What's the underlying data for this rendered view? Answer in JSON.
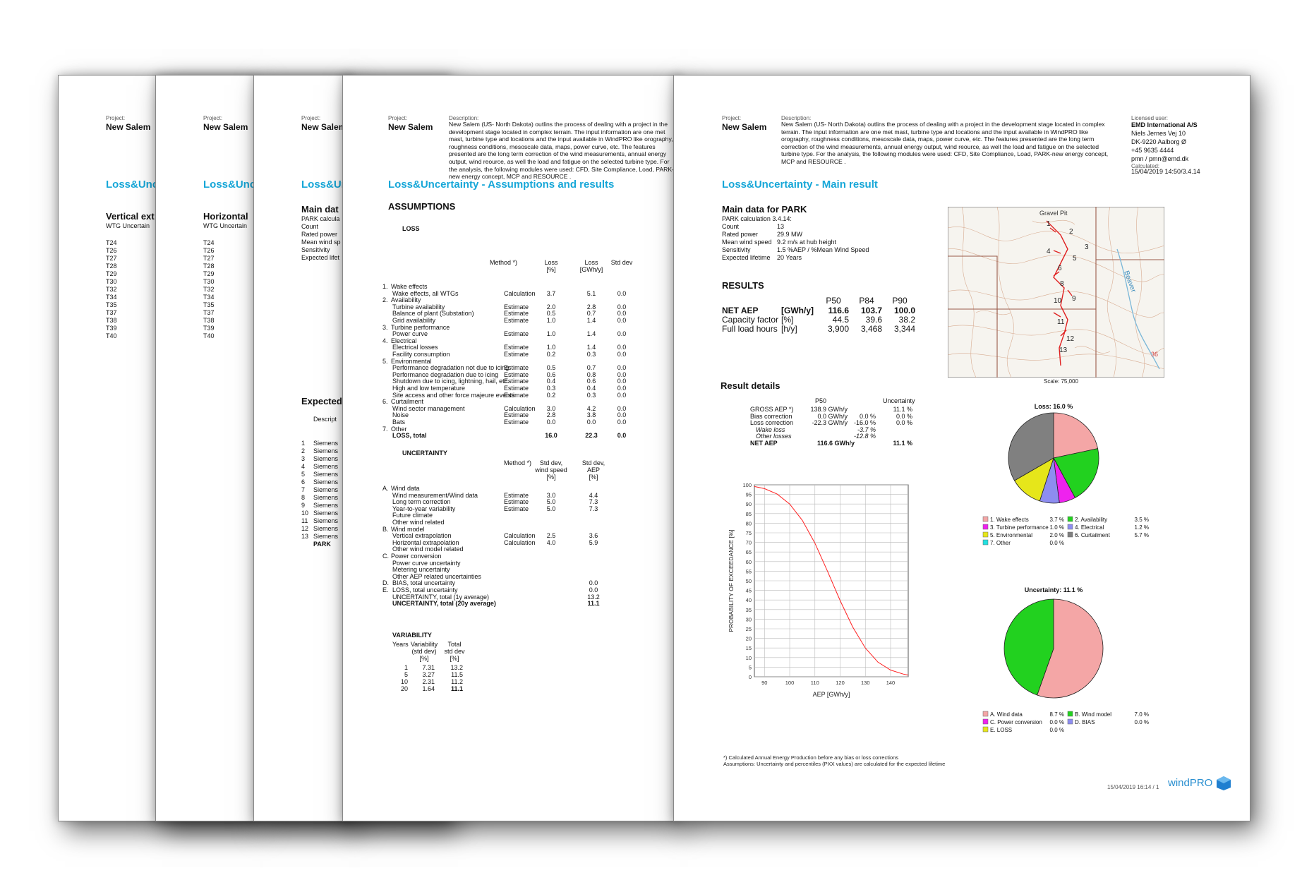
{
  "project": {
    "label": "Project:",
    "name": "New Salem",
    "description_label": "Description:",
    "description": "New Salem (US- North Dakota) outlins the process of dealing with a project in the development stage located in complex terrain. The input information are one met mast, turbine type and locations and the input available in WindPRO like orography, roughness conditions, mesoscale data, maps, power curve, etc. The features presented are the long term correction of the wind measurements, annual energy output, wind reource, as well the load and fatigue on the selected turbine type. For the analysis, the following modules were used: CFD, Site Compliance, Load, PARK-new energy concept, MCP and RESOURCE ."
  },
  "licensed": {
    "label": "Licensed user:",
    "company": "EMD International A/S",
    "street": "Niels Jernes Vej 10",
    "city": "DK-9220 Aalborg Ø",
    "phone": "+45 9635 4444",
    "email": "pmn / pmn@emd.dk",
    "calc_label": "Calculated:",
    "calculated": "15/04/2019 14:50/3.4.14"
  },
  "page1": {
    "title": "Loss&Unc",
    "heading": "Vertical ext",
    "sub": "WTG   Uncertain",
    "rows": [
      "T24",
      "T26",
      "T27",
      "T28",
      "T29",
      "T30",
      "T32",
      "T34",
      "T35",
      "T37",
      "T38",
      "T39",
      "T40"
    ]
  },
  "page2": {
    "title": "Loss&Unc",
    "heading": "Horizontal",
    "sub": "WTG   Uncertain",
    "rows": [
      "T24",
      "T26",
      "T27",
      "T28",
      "T29",
      "T30",
      "T32",
      "T34",
      "T35",
      "T37",
      "T38",
      "T39",
      "T40"
    ]
  },
  "page3": {
    "title": "Loss&Unc",
    "heading": "Main dat",
    "params": [
      "PARK calcula",
      "Count",
      "Rated power",
      "Mean wind sp",
      "Sensitivity",
      "Expected lifet"
    ],
    "expected": "Expected",
    "descr": "Descript",
    "list": [
      {
        "n": "1",
        "t": "Siemens"
      },
      {
        "n": "2",
        "t": "Siemens"
      },
      {
        "n": "3",
        "t": "Siemens"
      },
      {
        "n": "4",
        "t": "Siemens"
      },
      {
        "n": "5",
        "t": "Siemens"
      },
      {
        "n": "6",
        "t": "Siemens"
      },
      {
        "n": "7",
        "t": "Siemens"
      },
      {
        "n": "8",
        "t": "Siemens"
      },
      {
        "n": "9",
        "t": "Siemens"
      },
      {
        "n": "10",
        "t": "Siemens"
      },
      {
        "n": "11",
        "t": "Siemens"
      },
      {
        "n": "12",
        "t": "Siemens"
      },
      {
        "n": "13",
        "t": "Siemens"
      }
    ],
    "park": "PARK"
  },
  "page4": {
    "title": "Loss&Uncertainty - Assumptions and results",
    "assumptions": "ASSUMPTIONS",
    "loss": "LOSS",
    "loss_headers": {
      "method": "Method *)",
      "loss_pct": "Loss\n[%]",
      "loss_gwh": "Loss\n[GWh/y]",
      "std": "Std dev"
    },
    "loss_rows": [
      {
        "c": "1.",
        "l": "Wake effects",
        "m": "",
        "a": "",
        "b": "",
        "s": "",
        "head": true
      },
      {
        "c": "",
        "l": "Wake effects, all WTGs",
        "m": "Calculation",
        "a": "3.7",
        "b": "5.1",
        "s": "0.0"
      },
      {
        "c": "2.",
        "l": "Availability",
        "m": "",
        "a": "",
        "b": "",
        "s": "",
        "head": true
      },
      {
        "c": "",
        "l": "Turbine availability",
        "m": "Estimate",
        "a": "2.0",
        "b": "2.8",
        "s": "0.0"
      },
      {
        "c": "",
        "l": "Balance of plant (Substation)",
        "m": "Estimate",
        "a": "0.5",
        "b": "0.7",
        "s": "0.0"
      },
      {
        "c": "",
        "l": "Grid availability",
        "m": "Estimate",
        "a": "1.0",
        "b": "1.4",
        "s": "0.0"
      },
      {
        "c": "3.",
        "l": "Turbine performance",
        "m": "",
        "a": "",
        "b": "",
        "s": "",
        "head": true
      },
      {
        "c": "",
        "l": "Power curve",
        "m": "Estimate",
        "a": "1.0",
        "b": "1.4",
        "s": "0.0"
      },
      {
        "c": "4.",
        "l": "Electrical",
        "m": "",
        "a": "",
        "b": "",
        "s": "",
        "head": true
      },
      {
        "c": "",
        "l": "Electrical losses",
        "m": "Estimate",
        "a": "1.0",
        "b": "1.4",
        "s": "0.0"
      },
      {
        "c": "",
        "l": "Facility consumption",
        "m": "Estimate",
        "a": "0.2",
        "b": "0.3",
        "s": "0.0"
      },
      {
        "c": "5.",
        "l": "Environmental",
        "m": "",
        "a": "",
        "b": "",
        "s": "",
        "head": true
      },
      {
        "c": "",
        "l": "Performance degradation not due to icing",
        "m": "Estimate",
        "a": "0.5",
        "b": "0.7",
        "s": "0.0"
      },
      {
        "c": "",
        "l": "Performance degradation due to icing",
        "m": "Estimate",
        "a": "0.6",
        "b": "0.8",
        "s": "0.0"
      },
      {
        "c": "",
        "l": "Shutdown due to icing, lightning, hail, etc.",
        "m": "Estimate",
        "a": "0.4",
        "b": "0.6",
        "s": "0.0"
      },
      {
        "c": "",
        "l": "High and low temperature",
        "m": "Estimate",
        "a": "0.3",
        "b": "0.4",
        "s": "0.0"
      },
      {
        "c": "",
        "l": "Site access and other force majeure events",
        "m": "Estimate",
        "a": "0.2",
        "b": "0.3",
        "s": "0.0"
      },
      {
        "c": "6.",
        "l": "Curtailment",
        "m": "",
        "a": "",
        "b": "",
        "s": "",
        "head": true
      },
      {
        "c": "",
        "l": "Wind sector management",
        "m": "Calculation",
        "a": "3.0",
        "b": "4.2",
        "s": "0.0"
      },
      {
        "c": "",
        "l": "Noise",
        "m": "Estimate",
        "a": "2.8",
        "b": "3.8",
        "s": "0.0"
      },
      {
        "c": "",
        "l": "Bats",
        "m": "Estimate",
        "a": "0.0",
        "b": "0.0",
        "s": "0.0"
      },
      {
        "c": "7.",
        "l": "Other",
        "m": "",
        "a": "",
        "b": "",
        "s": "",
        "head": true
      }
    ],
    "loss_total": {
      "l": "LOSS, total",
      "a": "16.0",
      "b": "22.3",
      "s": "0.0"
    },
    "uncertainty": "UNCERTAINTY",
    "unc_headers": {
      "method": "Method *)",
      "ws": "Std dev,\nwind speed\n[%]",
      "aep": "Std dev,\nAEP\n[%]"
    },
    "unc_rows": [
      {
        "c": "A.",
        "l": "Wind data",
        "m": "",
        "a": "",
        "b": "",
        "head": true
      },
      {
        "c": "",
        "l": "Wind measurement/Wind data",
        "m": "Estimate",
        "a": "3.0",
        "b": "4.4"
      },
      {
        "c": "",
        "l": "Long term correction",
        "m": "Estimate",
        "a": "5.0",
        "b": "7.3"
      },
      {
        "c": "",
        "l": "Year-to-year variability",
        "m": "Estimate",
        "a": "5.0",
        "b": "7.3"
      },
      {
        "c": "",
        "l": "Future climate",
        "m": "",
        "a": "",
        "b": ""
      },
      {
        "c": "",
        "l": "Other wind related",
        "m": "",
        "a": "",
        "b": ""
      },
      {
        "c": "B.",
        "l": "Wind model",
        "m": "",
        "a": "",
        "b": "",
        "head": true
      },
      {
        "c": "",
        "l": "Vertical extrapolation",
        "m": "Calculation",
        "a": "2.5",
        "b": "3.6"
      },
      {
        "c": "",
        "l": "Horizontal extrapolation",
        "m": "Calculation",
        "a": "4.0",
        "b": "5.9"
      },
      {
        "c": "",
        "l": "Other wind model related",
        "m": "",
        "a": "",
        "b": ""
      },
      {
        "c": "C.",
        "l": "Power conversion",
        "m": "",
        "a": "",
        "b": "",
        "head": true
      },
      {
        "c": "",
        "l": "Power curve uncertainty",
        "m": "",
        "a": "",
        "b": ""
      },
      {
        "c": "",
        "l": "Metering uncertainty",
        "m": "",
        "a": "",
        "b": ""
      },
      {
        "c": "",
        "l": "Other AEP related uncertainties",
        "m": "",
        "a": "",
        "b": ""
      },
      {
        "c": "D.",
        "l": "BIAS, total uncertainty",
        "m": "",
        "a": "",
        "b": "0.0"
      },
      {
        "c": "E.",
        "l": "LOSS, total uncertainty",
        "m": "",
        "a": "",
        "b": "0.0"
      },
      {
        "c": "",
        "l": "UNCERTAINTY, total (1y average)",
        "m": "",
        "a": "",
        "b": "13.2"
      }
    ],
    "unc_total": {
      "l": "UNCERTAINTY, total (20y average)",
      "b": "11.1"
    },
    "variability": "VARIABILITY",
    "var_headers": {
      "years": "Years",
      "var": "Variability\n(std dev)\n[%]",
      "total": "Total\nstd dev\n[%]"
    },
    "var_rows": [
      {
        "y": "1",
        "v": "7.31",
        "t": "13.2"
      },
      {
        "y": "5",
        "v": "3.27",
        "t": "11.5"
      },
      {
        "y": "10",
        "v": "2.31",
        "t": "11.2"
      },
      {
        "y": "20",
        "v": "1.64",
        "t": "11.1"
      }
    ]
  },
  "page5": {
    "title": "Loss&Uncertainty - Main result",
    "main_heading": "Main data for PARK",
    "main_rows": [
      {
        "k": "PARK calculation 3.4.14:",
        "v": ""
      },
      {
        "k": "Count",
        "v": "13"
      },
      {
        "k": "Rated power",
        "v": "29.9 MW"
      },
      {
        "k": "Mean wind speed",
        "v": "9.2 m/s at hub height"
      },
      {
        "k": "Sensitivity",
        "v": "1.5 %AEP / %Mean Wind Speed"
      },
      {
        "k": "Expected lifetime",
        "v": "20 Years"
      }
    ],
    "results": "RESULTS",
    "res_headers": [
      "P50",
      "P84",
      "P90"
    ],
    "res_rows": [
      {
        "k": "NET AEP",
        "u": "[GWh/y]",
        "v": [
          "116.6",
          "103.7",
          "100.0"
        ],
        "bold": true
      },
      {
        "k": "Capacity factor",
        "u": "[%]",
        "v": [
          "44.5",
          "39.6",
          "38.2"
        ]
      },
      {
        "k": "Full load hours",
        "u": "[h/y]",
        "v": [
          "3,900",
          "3,468",
          "3,344"
        ]
      }
    ],
    "details": "Result details",
    "det_headers": {
      "p50": "P50",
      "unc": "Uncertainty"
    },
    "det_rows": [
      {
        "k": "GROSS AEP *)",
        "v": "138.9 GWh/y",
        "p": "",
        "u": "11.1 %"
      },
      {
        "k": "Bias correction",
        "v": "0.0 GWh/y",
        "p": "0.0 %",
        "u": "0.0 %"
      },
      {
        "k": "Loss correction",
        "v": "-22.3 GWh/y",
        "p": "-16.0 %",
        "u": "0.0 %"
      },
      {
        "k": "Wake loss",
        "v": "",
        "p": "-3.7 %",
        "u": "",
        "it": true
      },
      {
        "k": "Other losses",
        "v": "",
        "p": "-12.8 %",
        "u": "",
        "it": true
      }
    ],
    "det_net": {
      "k": "NET AEP",
      "v": "116.6 GWh/y",
      "u": "11.1 %"
    },
    "map_scale": "Scale: 75,000",
    "map_labels": {
      "gravel": "Gravel Pit",
      "beaver": "Beaver",
      "n36": "36",
      "wtg": [
        "1",
        "2",
        "3",
        "4",
        "5",
        "6",
        "8",
        "9",
        "10",
        "11",
        "12",
        "13"
      ]
    },
    "footnote1": "*) Calculated Annual Energy Production before any bias or loss corrections",
    "footnote2": "Assumptions: Uncertainty and percentiles (PXX values) are calculated for the expected lifetime",
    "footer_date": "15/04/2019 16:14 / 1",
    "logo": "windPRO"
  },
  "chart_data": [
    {
      "type": "line",
      "xlabel": "AEP [GWh/y]",
      "ylabel": "PROBABILITY OF EXCEEDANCE [%]",
      "xlim": [
        86,
        147
      ],
      "ylim": [
        0,
        100
      ],
      "xticks": [
        90,
        100,
        110,
        120,
        130,
        140
      ],
      "yticks": [
        0,
        5,
        10,
        15,
        20,
        25,
        30,
        35,
        40,
        45,
        50,
        55,
        60,
        65,
        70,
        75,
        80,
        85,
        90,
        95,
        100
      ],
      "grid": true,
      "series": [
        {
          "color": "#ff2020",
          "mean": 116.6,
          "std": 12.94,
          "x": [
            86,
            90,
            95,
            100,
            105,
            110,
            115,
            120,
            125,
            130,
            135,
            140,
            145,
            147
          ],
          "y": [
            99.1,
            98.0,
            95.2,
            90.0,
            81.5,
            69.6,
            55.0,
            39.7,
            25.9,
            15.0,
            7.6,
            3.5,
            1.4,
            0.9
          ]
        }
      ]
    },
    {
      "type": "pie",
      "title": "Loss: 16.0 %",
      "slices": [
        {
          "label": "1. Wake effects",
          "value": 3.7,
          "color": "#f4a6a6"
        },
        {
          "label": "2. Availability",
          "value": 3.5,
          "color": "#22d11f"
        },
        {
          "label": "3. Turbine performance",
          "value": 1.0,
          "color": "#ee22ee"
        },
        {
          "label": "4. Electrical",
          "value": 1.2,
          "color": "#8d8df0"
        },
        {
          "label": "5. Environmental",
          "value": 2.0,
          "color": "#e6e61a"
        },
        {
          "label": "6. Curtailment",
          "value": 5.7,
          "color": "#808080"
        },
        {
          "label": "7. Other",
          "value": 0.0,
          "color": "#22e0e0"
        }
      ],
      "legend_values": [
        "3.7 %",
        "3.5 %",
        "1.0 %",
        "1.2 %",
        "2.0 %",
        "5.7 %",
        "0.0 %"
      ]
    },
    {
      "type": "pie",
      "title": "Uncertainty: 11.1 %",
      "slices": [
        {
          "label": "A. Wind data",
          "value": 8.7,
          "color": "#f4a6a6"
        },
        {
          "label": "B. Wind model",
          "value": 7.0,
          "color": "#22d11f"
        },
        {
          "label": "C. Power conversion",
          "value": 0.0,
          "color": "#ee22ee"
        },
        {
          "label": "D. BIAS",
          "value": 0.0,
          "color": "#8d8df0"
        },
        {
          "label": "E. LOSS",
          "value": 0.0,
          "color": "#e6e61a"
        }
      ],
      "legend_values": [
        "8.7 %",
        "7.0 %",
        "0.0 %",
        "0.0 %",
        "0.0 %"
      ]
    }
  ]
}
